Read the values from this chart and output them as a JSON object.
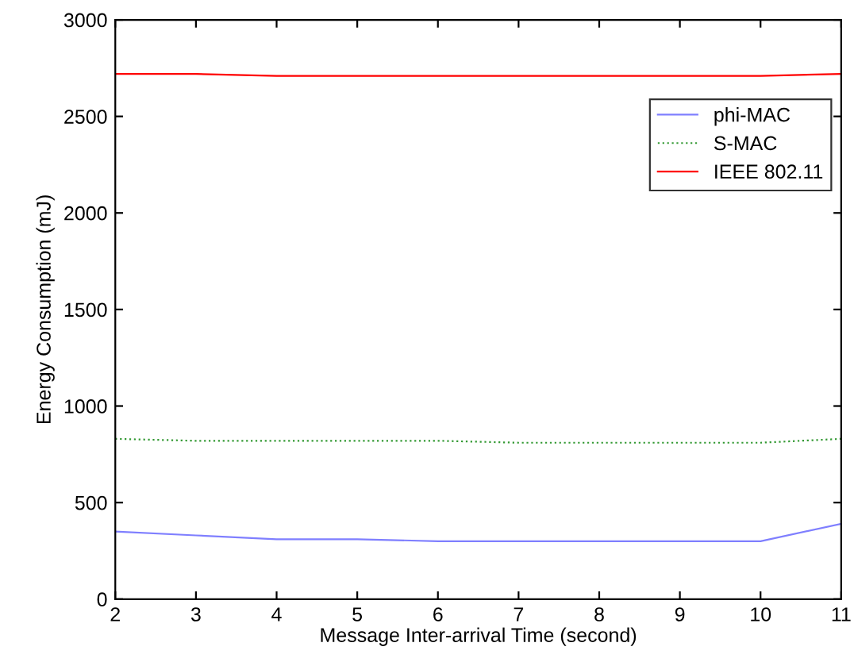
{
  "chart_data": {
    "type": "line",
    "xlabel": "Message Inter-arrival Time (second)",
    "ylabel": "Energy Consumption (mJ)",
    "x": [
      2,
      3,
      4,
      5,
      6,
      7,
      8,
      9,
      10,
      11
    ],
    "series": [
      {
        "name": "phi-MAC",
        "color": "#7f7fff",
        "values": [
          350,
          330,
          310,
          310,
          300,
          300,
          300,
          300,
          300,
          390
        ]
      },
      {
        "name": "S-MAC",
        "color": "#339933",
        "line_style": "dotted",
        "values": [
          830,
          820,
          820,
          820,
          820,
          810,
          810,
          810,
          810,
          830
        ]
      },
      {
        "name": "IEEE 802.11",
        "color": "#ff0000",
        "values": [
          2720,
          2720,
          2710,
          2710,
          2710,
          2710,
          2710,
          2710,
          2710,
          2720
        ]
      }
    ],
    "xlim": [
      2,
      11
    ],
    "ylim": [
      0,
      3000
    ],
    "xticks": [
      2,
      3,
      4,
      5,
      6,
      7,
      8,
      9,
      10,
      11
    ],
    "yticks": [
      0,
      500,
      1000,
      1500,
      2000,
      2500,
      3000
    ],
    "grid": false,
    "legend": "top right",
    "marker": "none"
  }
}
